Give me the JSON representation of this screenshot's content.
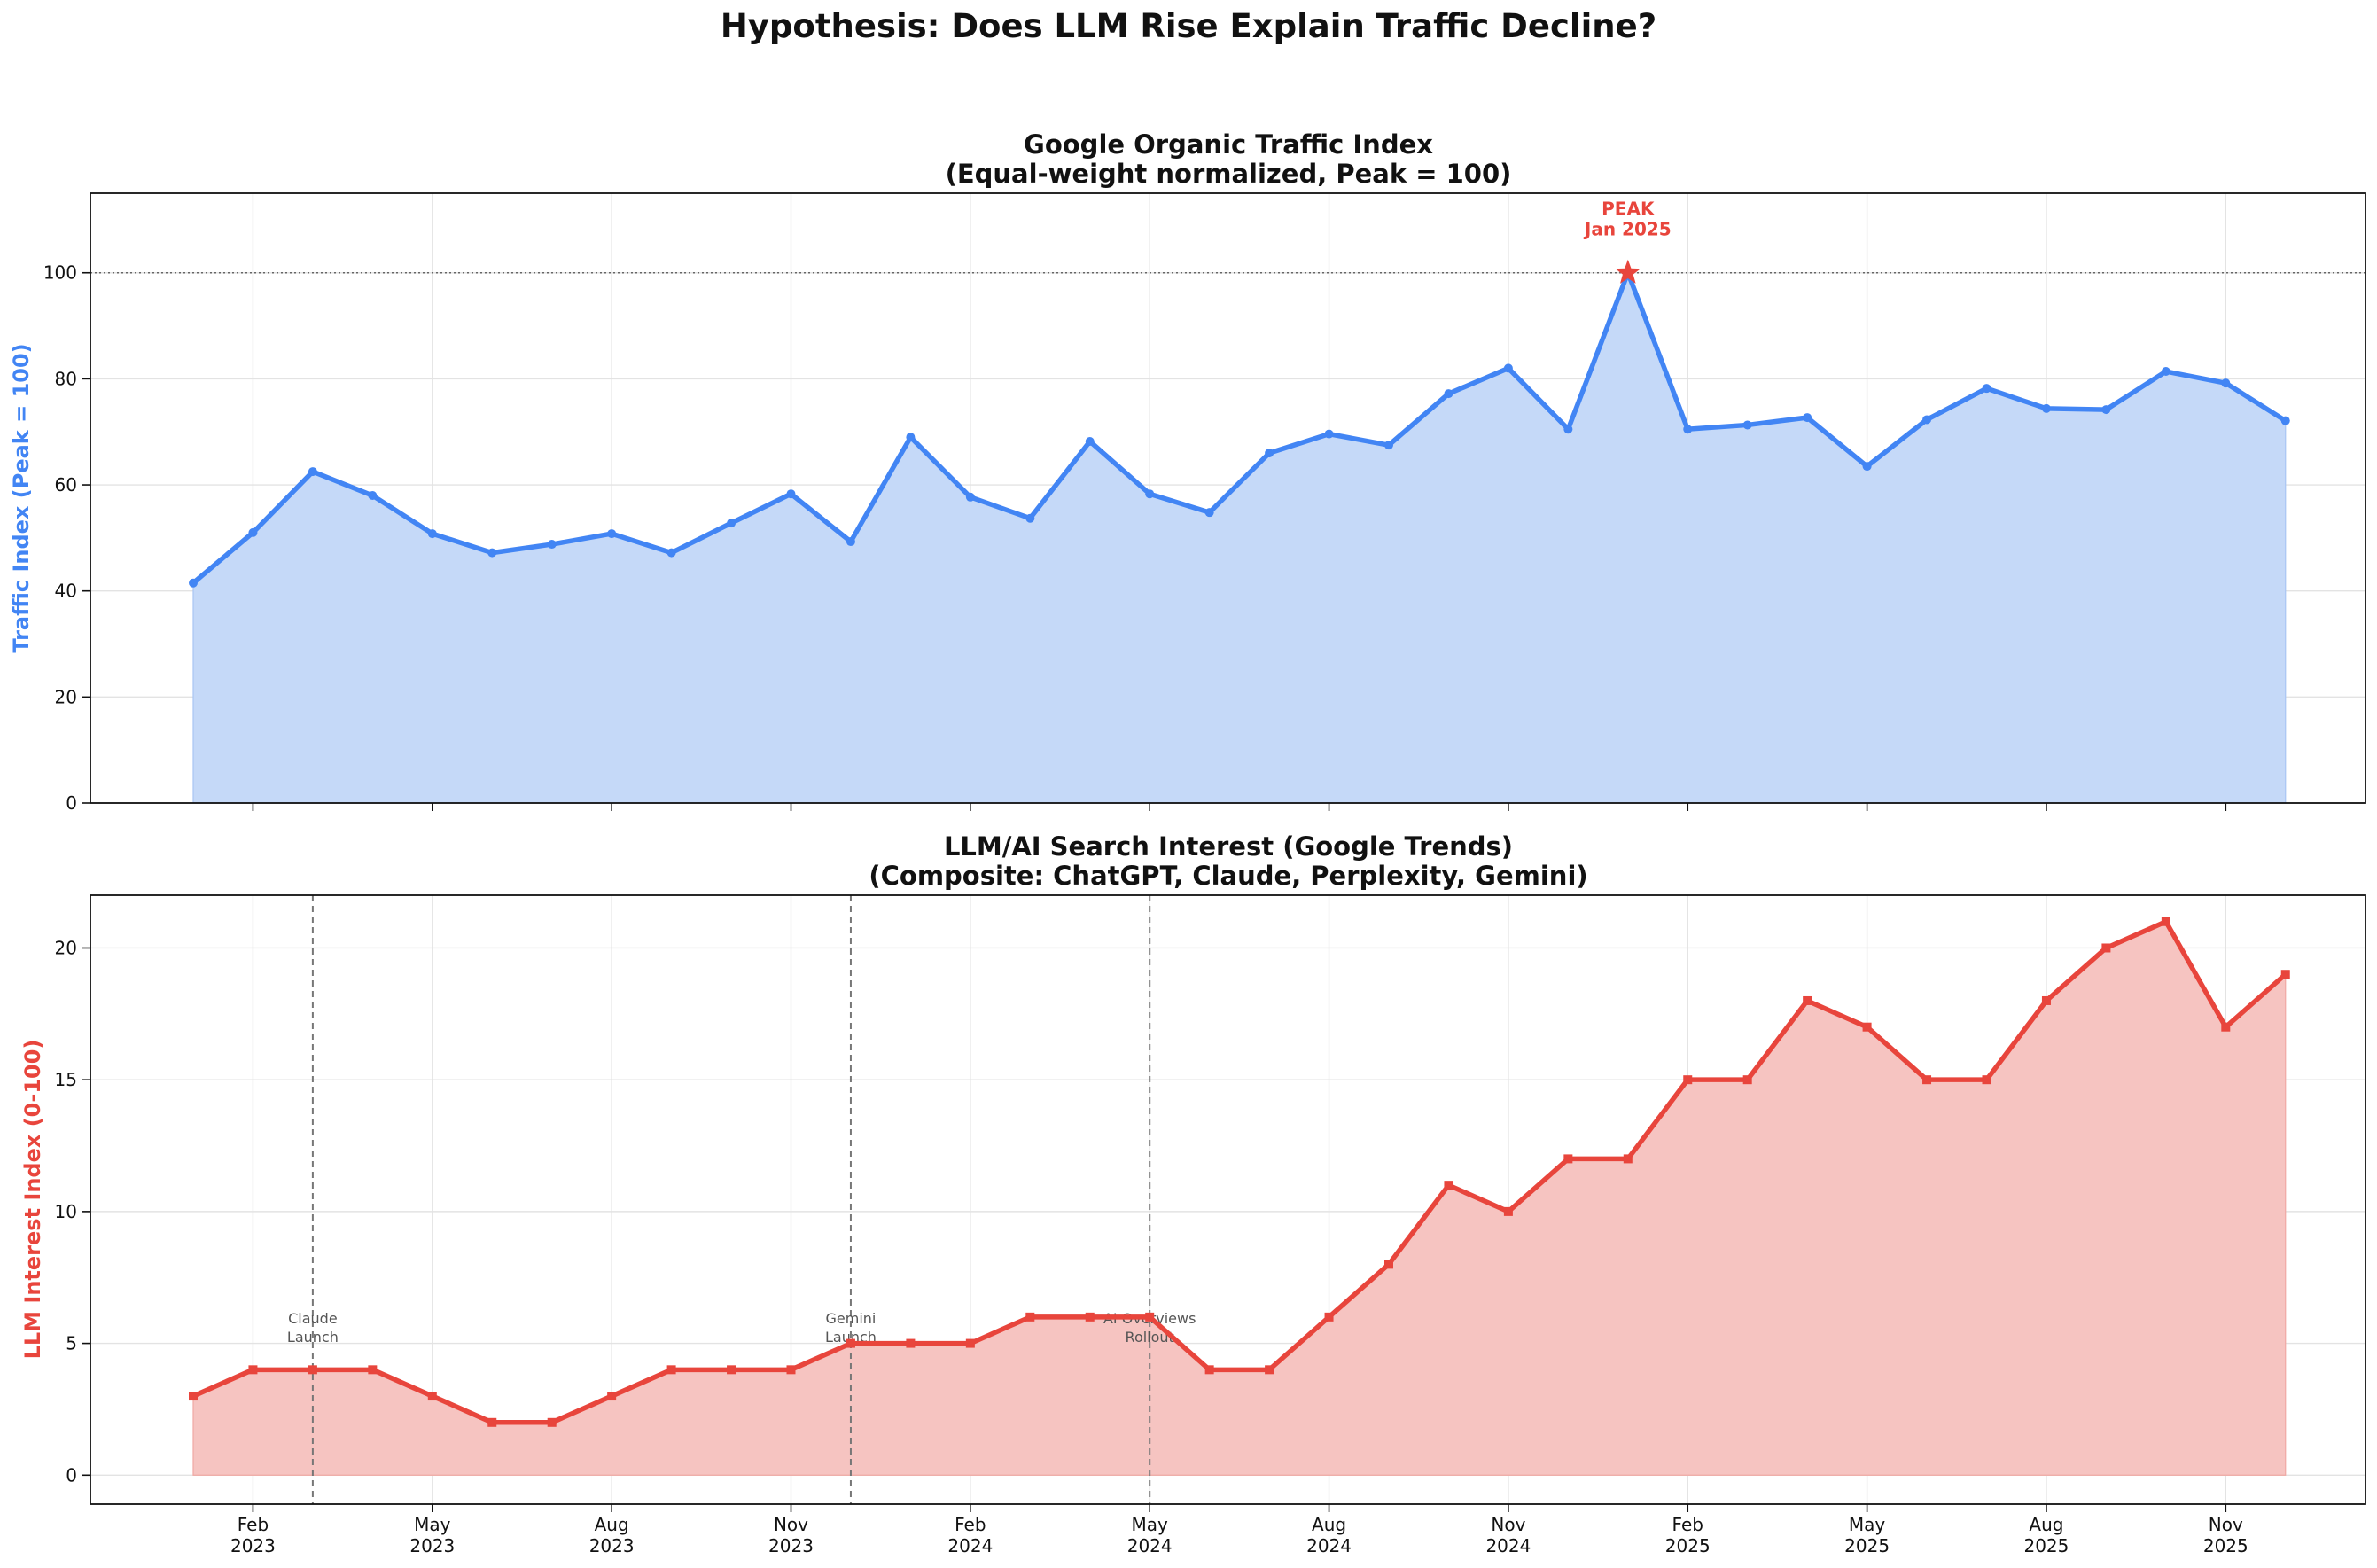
{
  "figure": {
    "suptitle": "Hypothesis: Does LLM Rise Explain Traffic Decline?"
  },
  "colors": {
    "traffic": "#4285f4",
    "traffic_fill": "#c5d9f8",
    "llm": "#e8453c",
    "llm_fill": "#f6c4c1",
    "peak": "#e8453c",
    "grid": "#e3e3e3",
    "event_line": "#777777"
  },
  "x_axis": {
    "labels": [
      {
        "month": "Feb",
        "year": "2023",
        "index": 1
      },
      {
        "month": "May",
        "year": "2023",
        "index": 4
      },
      {
        "month": "Aug",
        "year": "2023",
        "index": 7
      },
      {
        "month": "Nov",
        "year": "2023",
        "index": 10
      },
      {
        "month": "Feb",
        "year": "2024",
        "index": 13
      },
      {
        "month": "May",
        "year": "2024",
        "index": 16
      },
      {
        "month": "Aug",
        "year": "2024",
        "index": 19
      },
      {
        "month": "Nov",
        "year": "2024",
        "index": 22
      },
      {
        "month": "Feb",
        "year": "2025",
        "index": 25
      },
      {
        "month": "May",
        "year": "2025",
        "index": 28
      },
      {
        "month": "Aug",
        "year": "2025",
        "index": 31
      },
      {
        "month": "Nov",
        "year": "2025",
        "index": 34
      }
    ]
  },
  "chart_data": [
    {
      "type": "area",
      "title_line1": "Google Organic Traffic Index",
      "title_line2": "(Equal-weight normalized, Peak = 100)",
      "ylabel": "Traffic Index (Peak = 100)",
      "ylim": [
        0,
        115
      ],
      "yticks": [
        0,
        20,
        40,
        60,
        80,
        100
      ],
      "x_start": "2023-01",
      "values": [
        41.5,
        51,
        62.5,
        58,
        50.8,
        47.2,
        48.8,
        50.8,
        47.2,
        52.8,
        58.3,
        49.3,
        69,
        57.7,
        53.7,
        68.2,
        58.3,
        54.8,
        66,
        69.6,
        67.5,
        77.2,
        82,
        70.5,
        100,
        70.5,
        71.3,
        72.7,
        63.5,
        72.3,
        78.2,
        74.4,
        74.2,
        81.4,
        79.2,
        72.1
      ],
      "reference_line": 100,
      "peak": {
        "index": 24,
        "value": 100,
        "label_line1": "PEAK",
        "label_line2": "Jan 2025"
      }
    },
    {
      "type": "area",
      "title_line1": "LLM/AI Search Interest (Google Trends)",
      "title_line2": "(Composite: ChatGPT, Claude, Perplexity, Gemini)",
      "ylabel": "LLM Interest Index (0-100)",
      "ylim": [
        -1.1,
        22
      ],
      "yticks": [
        0,
        5,
        10,
        15,
        20
      ],
      "x_start": "2023-01",
      "values": [
        3,
        4,
        4,
        4,
        3,
        2,
        2,
        3,
        4,
        4,
        4,
        5,
        5,
        5,
        6,
        6,
        6,
        4,
        4,
        6,
        8,
        11,
        10,
        12,
        12,
        15,
        15,
        18,
        17,
        15,
        15,
        18,
        20,
        21,
        17,
        19
      ],
      "events": [
        {
          "index": 2,
          "line1": "Claude",
          "line2": "Launch"
        },
        {
          "index": 11,
          "line1": "Gemini",
          "line2": "Launch"
        },
        {
          "index": 16,
          "line1": "AI Overviews",
          "line2": "Rollout"
        }
      ]
    }
  ]
}
